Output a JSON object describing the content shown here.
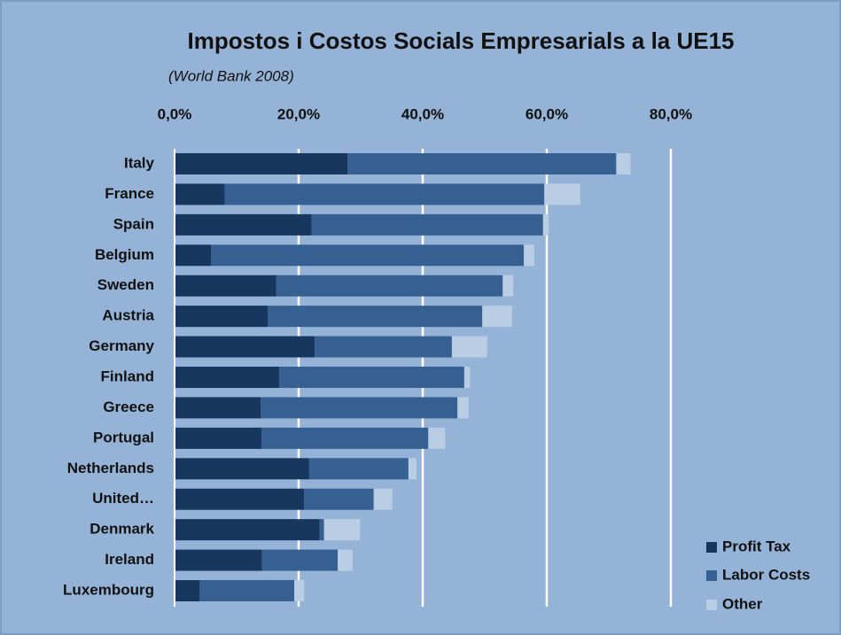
{
  "chart_data": {
    "type": "stacked-barh",
    "title": "Impostos i Costos Socials Empresarials a la UE15",
    "subtitle": "(World Bank 2008)",
    "categories": [
      "Italy",
      "France",
      "Spain",
      "Belgium",
      "Sweden",
      "Austria",
      "Germany",
      "Finland",
      "Greece",
      "Portugal",
      "Netherlands",
      "United…",
      "Denmark",
      "Ireland",
      "Luxembourg"
    ],
    "series": [
      {
        "name": "Profit Tax",
        "color": "#17375e",
        "values": [
          27.9,
          8.1,
          22.1,
          5.9,
          16.4,
          15.0,
          22.6,
          16.9,
          13.9,
          14.0,
          21.7,
          20.9,
          23.4,
          14.1,
          4.0
        ]
      },
      {
        "name": "Labor Costs",
        "color": "#376092",
        "values": [
          43.3,
          51.5,
          37.3,
          50.4,
          36.5,
          34.6,
          22.1,
          29.8,
          31.7,
          26.9,
          16.0,
          11.2,
          0.7,
          12.2,
          15.3
        ]
      },
      {
        "name": "Other",
        "color": "#b9cde5",
        "values": [
          2.3,
          5.8,
          0.9,
          1.7,
          1.7,
          4.8,
          5.7,
          0.9,
          1.8,
          2.7,
          1.3,
          3.0,
          5.8,
          2.4,
          1.6
        ]
      }
    ],
    "xlim": [
      0,
      80
    ],
    "xticks": [
      {
        "value": 0,
        "label": "0,0%"
      },
      {
        "value": 20,
        "label": "20,0%"
      },
      {
        "value": 40,
        "label": "40,0%"
      },
      {
        "value": 60,
        "label": "60,0%"
      },
      {
        "value": 80,
        "label": "80,0%"
      }
    ],
    "grid": true,
    "legend": "bottom-right"
  }
}
